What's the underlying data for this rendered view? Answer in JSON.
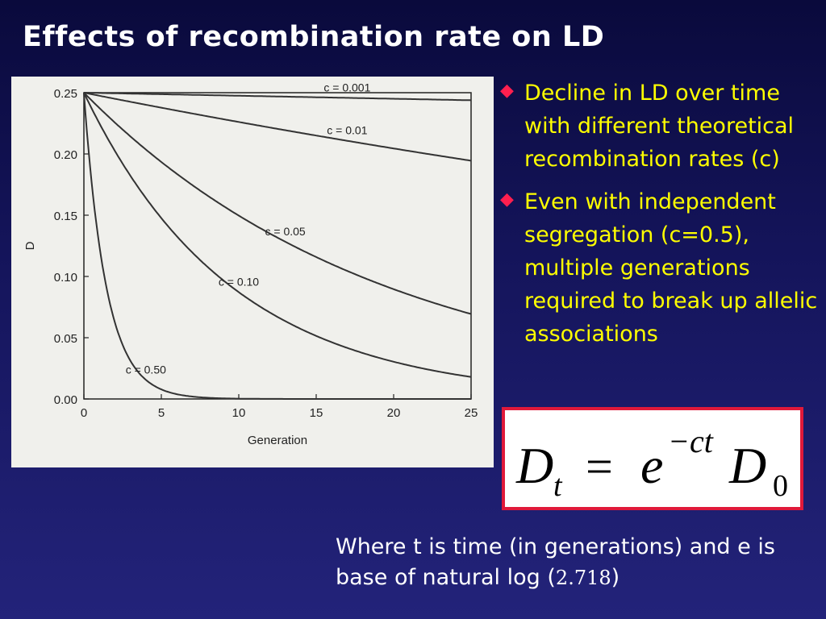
{
  "slide": {
    "title": "Effects of recombination rate on LD",
    "bullets": [
      "Decline in LD over time with different theoretical recombination rates (c)",
      "Even with independent segregation (c=0.5), multiple generations required to break up allelic associations"
    ],
    "bullet_icon": "diamond-icon",
    "formula": {
      "lhs_base": "D",
      "lhs_sub": "t",
      "equals": "=",
      "exp_base": "e",
      "exp_power": "−ct",
      "rhs_base": "D",
      "rhs_sub": "0"
    },
    "footnote_text": "Where t is time (in generations) and e is base of natural log (",
    "footnote_value": "2.718",
    "footnote_close": ")"
  },
  "colors": {
    "title": "#ffffff",
    "bullet_text": "#ffff00",
    "bullet_icon": "#ff1f4f",
    "formula_border": "#e0193a",
    "figure_bg": "#f0f0ec"
  },
  "chart_data": {
    "type": "line",
    "xlabel": "Generation",
    "ylabel": "D",
    "xlim": [
      0,
      25
    ],
    "ylim": [
      0,
      0.25
    ],
    "xticks": [
      0,
      5,
      10,
      15,
      20,
      25
    ],
    "yticks": [
      0,
      0.05,
      0.1,
      0.15,
      0.2,
      0.25
    ],
    "xtick_labels": [
      "0",
      "5",
      "10",
      "15",
      "20",
      "25"
    ],
    "ytick_labels": [
      "0.00",
      "0.05",
      "0.10",
      "0.15",
      "0.20",
      "0.25"
    ],
    "initial_D": 0.25,
    "series": [
      {
        "name": "c = 0.001",
        "c": 0.001
      },
      {
        "name": "c = 0.01",
        "c": 0.01
      },
      {
        "name": "c = 0.05",
        "c": 0.05
      },
      {
        "name": "c = 0.10",
        "c": 0.1
      },
      {
        "name": "c = 0.50",
        "c": 0.5
      }
    ],
    "grid": false
  }
}
